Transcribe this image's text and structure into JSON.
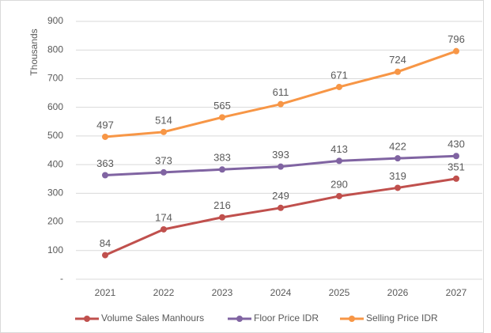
{
  "chart_data": {
    "type": "line",
    "y_label": "Thousands",
    "categories": [
      "2021",
      "2022",
      "2023",
      "2024",
      "2025",
      "2026",
      "2027"
    ],
    "series": [
      {
        "name": "Volume Sales Manhours",
        "color": "#c0504d",
        "values": [
          84,
          174,
          216,
          249,
          290,
          319,
          351
        ]
      },
      {
        "name": "Floor Price IDR",
        "color": "#8064a2",
        "values": [
          363,
          373,
          383,
          393,
          413,
          422,
          430
        ]
      },
      {
        "name": "Selling Price IDR",
        "color": "#f79646",
        "values": [
          497,
          514,
          565,
          611,
          671,
          724,
          796
        ]
      }
    ],
    "ylim": [
      0,
      900
    ],
    "yticks": [
      {
        "value": 0,
        "label": "-"
      },
      100,
      200,
      300,
      400,
      500,
      600,
      700,
      800,
      900
    ],
    "grid": true,
    "legend": "bottom"
  }
}
